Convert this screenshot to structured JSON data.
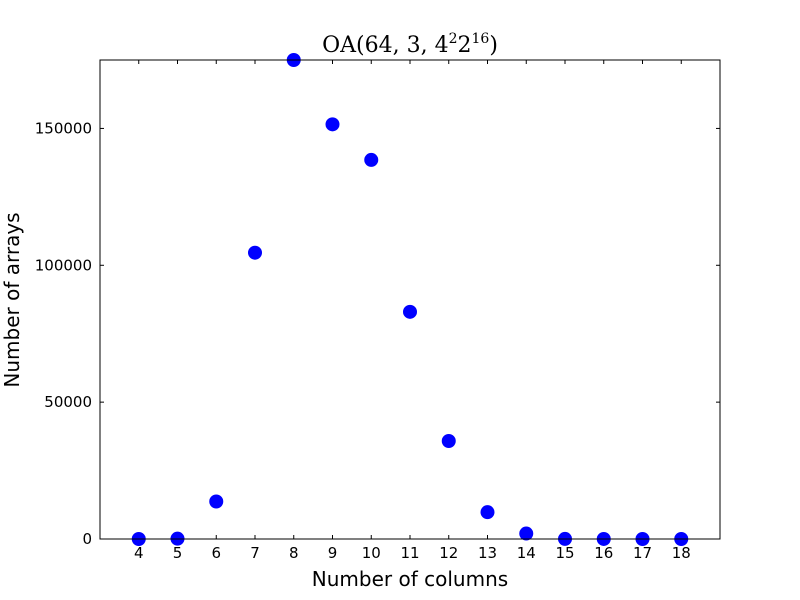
{
  "chart_data": {
    "type": "scatter",
    "title": {
      "base": "OA",
      "prefix": "(64, 3, 4",
      "exp1": "2",
      "mid": "2",
      "exp2": "16",
      "suffix": ")"
    },
    "xlabel": "Number of columns",
    "ylabel": "Number of arrays",
    "xlim": [
      3,
      19
    ],
    "ylim": [
      0,
      175000
    ],
    "xticks": [
      4,
      5,
      6,
      7,
      8,
      9,
      10,
      11,
      12,
      13,
      14,
      15,
      16,
      17,
      18
    ],
    "yticks": [
      0,
      50000,
      100000,
      150000
    ],
    "grid": false,
    "marker_color": "#0000ff",
    "series": [
      {
        "x": [
          4,
          5,
          6,
          7,
          8,
          9,
          10,
          11,
          12,
          13,
          14,
          15,
          16,
          17,
          18
        ],
        "y": [
          1,
          120,
          13700,
          104600,
          175000,
          151500,
          138500,
          83000,
          35800,
          9800,
          2000,
          40,
          5,
          1,
          1
        ]
      }
    ]
  }
}
